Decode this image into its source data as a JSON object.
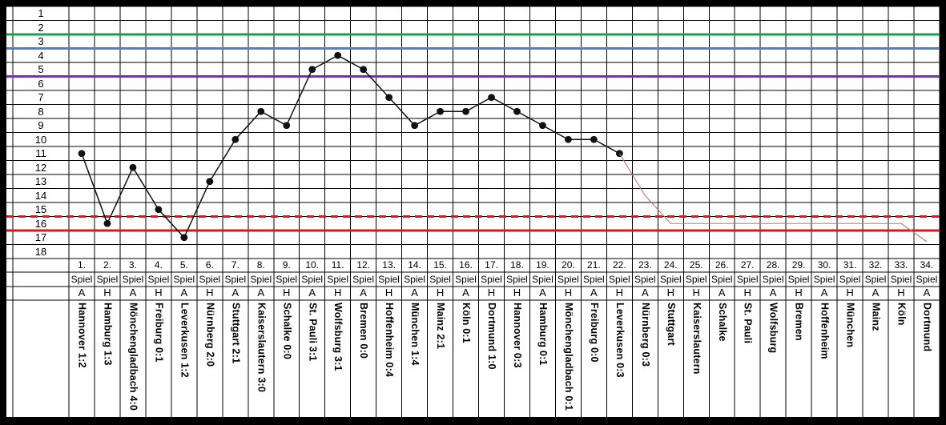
{
  "chart_data": {
    "type": "line",
    "title": "",
    "y_axis_labels": [
      "1",
      "2",
      "3",
      "4",
      "5",
      "6",
      "7",
      "8",
      "9",
      "10",
      "11",
      "12",
      "13",
      "14",
      "15",
      "16",
      "17",
      "18"
    ],
    "ylim": [
      1,
      18
    ],
    "y_inverted": true,
    "xlim": [
      1,
      34
    ],
    "grid": true,
    "series": [
      {
        "name": "league-position",
        "x": [
          1,
          2,
          3,
          4,
          5,
          6,
          7,
          8,
          9,
          10,
          11,
          12,
          13,
          14,
          15,
          16,
          17,
          18,
          19,
          20,
          21,
          22
        ],
        "values": [
          11,
          16,
          12,
          15,
          17,
          13,
          10,
          8,
          9,
          5,
          4,
          5,
          7,
          9,
          8,
          8,
          7,
          8,
          9,
          10,
          10,
          11
        ],
        "color": "#111111",
        "marker": "circle"
      },
      {
        "name": "projection",
        "x": [
          22,
          23,
          24,
          33,
          34
        ],
        "values": [
          11,
          14,
          16,
          16,
          17.3
        ],
        "color": "#c4736d",
        "marker": "none"
      }
    ],
    "reference_lines": [
      {
        "name": "boundary-below-2",
        "position_boundary": 2,
        "color": "#0fa353",
        "style": "solid"
      },
      {
        "name": "boundary-below-3",
        "position_boundary": 3,
        "color": "#5581b5",
        "style": "solid"
      },
      {
        "name": "boundary-below-5",
        "position_boundary": 5,
        "color": "#6b3b96",
        "style": "solid"
      },
      {
        "name": "boundary-below-15",
        "position_boundary": 15,
        "color": "#e31515",
        "style": "dashed"
      },
      {
        "name": "boundary-below-16",
        "position_boundary": 16,
        "color": "#e31515",
        "style": "solid"
      }
    ]
  },
  "table": {
    "spiel_label": "Spiel",
    "match_numbers": [
      "1.",
      "2.",
      "3.",
      "4.",
      "5.",
      "6.",
      "7.",
      "8.",
      "9.",
      "10.",
      "11.",
      "12.",
      "13.",
      "14.",
      "15.",
      "16.",
      "17.",
      "18.",
      "19.",
      "20.",
      "21.",
      "22.",
      "23.",
      "24.",
      "25.",
      "26.",
      "27.",
      "28.",
      "29.",
      "30.",
      "31.",
      "32.",
      "33.",
      "34."
    ],
    "venues": [
      "A",
      "H",
      "A",
      "H",
      "A",
      "H",
      "A",
      "A",
      "H",
      "A",
      "H",
      "A",
      "H",
      "A",
      "H",
      "A",
      "H",
      "H",
      "A",
      "H",
      "A",
      "H",
      "A",
      "H",
      "H",
      "A",
      "H",
      "A",
      "H",
      "A",
      "H",
      "A",
      "H",
      "A"
    ],
    "opponents": [
      "Hannover 1:2",
      "Hamburg 1:3",
      "Mönchengladbach 4:0",
      "Freiburg 0:1",
      "Leverkusen 1:2",
      "Nürnberg 2:0",
      "Stuttgart 2:1",
      "Kaiserslautern 3:0",
      "Schalke 0:0",
      "St. Pauli 3:1",
      "Wolfsburg 3:1",
      "Bremen 0:0",
      "Hoffenheim 0:4",
      "München 1:4",
      "Mainz  2:1",
      "Köln  0:1",
      "Dortmund 1:0",
      "Hannover 0:3",
      "Hamburg 0:1",
      "Mönchengladbach 0:1",
      "Freiburg  0:0",
      "Leverkusen 0:3",
      "Nürnberg 0:3",
      "Stuttgart",
      "Kaiserslautern",
      "Schalke",
      "St. Pauli",
      "Wolfsburg",
      "Bremen",
      "Hoffenheim",
      "München",
      "Mainz",
      "Köln",
      "Dortmund"
    ]
  }
}
